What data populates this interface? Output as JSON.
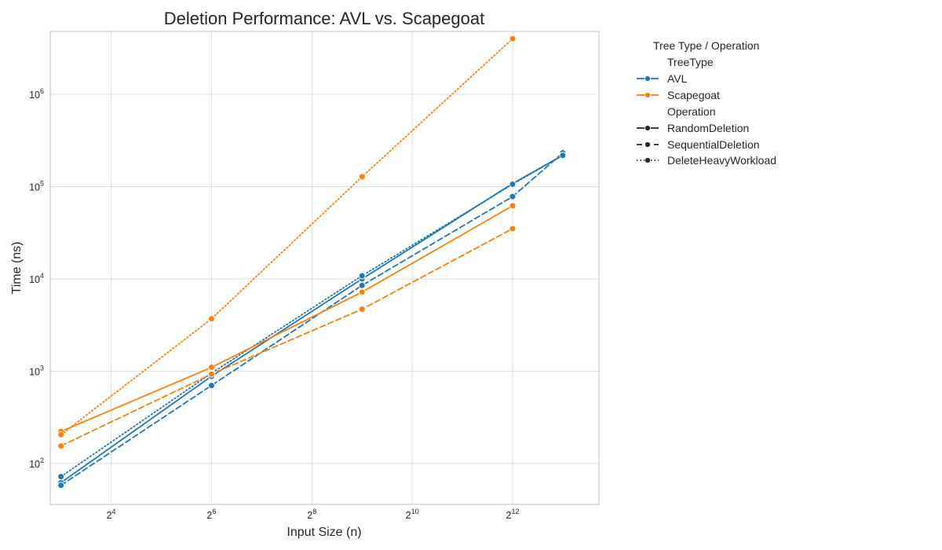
{
  "chart_data": {
    "type": "line",
    "title": "Deletion Performance: AVL vs. Scapegoat",
    "xlabel": "Input Size (n)",
    "ylabel": "Time (ns)",
    "x_scale": "log2",
    "y_scale": "log10",
    "xlim": [
      6.9,
      13504
    ],
    "ylim": [
      36,
      4800000
    ],
    "x_ticks": [
      {
        "value": 16,
        "base": "2",
        "exp": "4"
      },
      {
        "value": 64,
        "base": "2",
        "exp": "6"
      },
      {
        "value": 256,
        "base": "2",
        "exp": "8"
      },
      {
        "value": 1024,
        "base": "2",
        "exp": "10"
      },
      {
        "value": 4096,
        "base": "2",
        "exp": "12"
      }
    ],
    "y_ticks": [
      {
        "value": 100,
        "base": "10",
        "exp": "2"
      },
      {
        "value": 1000,
        "base": "10",
        "exp": "3"
      },
      {
        "value": 10000,
        "base": "10",
        "exp": "4"
      },
      {
        "value": 100000,
        "base": "10",
        "exp": "5"
      },
      {
        "value": 1000000,
        "base": "10",
        "exp": "6"
      }
    ],
    "grid": true,
    "legend_placement": "outside-right",
    "series": [
      {
        "tree": "AVL",
        "operation": "RandomDeletion",
        "x": [
          8,
          64,
          512,
          4096,
          8192
        ],
        "y": [
          62,
          880,
          10000,
          108000,
          218000
        ]
      },
      {
        "tree": "AVL",
        "operation": "SequentialDeletion",
        "x": [
          8,
          64,
          512,
          4096,
          8192
        ],
        "y": [
          58,
          700,
          8500,
          78000,
          232000
        ]
      },
      {
        "tree": "AVL",
        "operation": "DeleteHeavyWorkload",
        "x": [
          8,
          64,
          512,
          4096,
          8192
        ],
        "y": [
          72,
          950,
          10800,
          106000,
          218000
        ]
      },
      {
        "tree": "Scapegoat",
        "operation": "RandomDeletion",
        "x": [
          8,
          64,
          512,
          4096
        ],
        "y": [
          222,
          1100,
          7200,
          62000
        ]
      },
      {
        "tree": "Scapegoat",
        "operation": "SequentialDeletion",
        "x": [
          8,
          64,
          512,
          4096
        ],
        "y": [
          155,
          930,
          4700,
          35000
        ]
      },
      {
        "tree": "Scapegoat",
        "operation": "DeleteHeavyWorkload",
        "x": [
          8,
          64,
          512,
          4096
        ],
        "y": [
          205,
          3700,
          128000,
          4000000
        ]
      }
    ],
    "colors": {
      "AVL": "#1f77b4",
      "Scapegoat": "#ff7f0e",
      "neutral": "#262626"
    },
    "dashes": {
      "RandomDeletion": "",
      "SequentialDeletion": "7,4",
      "DeleteHeavyWorkload": "1.5,3"
    },
    "legend": {
      "title": "Tree Type / Operation",
      "hue_title": "TreeType",
      "hue_entries": [
        "AVL",
        "Scapegoat"
      ],
      "style_title": "Operation",
      "style_entries": [
        "RandomDeletion",
        "SequentialDeletion",
        "DeleteHeavyWorkload"
      ]
    }
  }
}
